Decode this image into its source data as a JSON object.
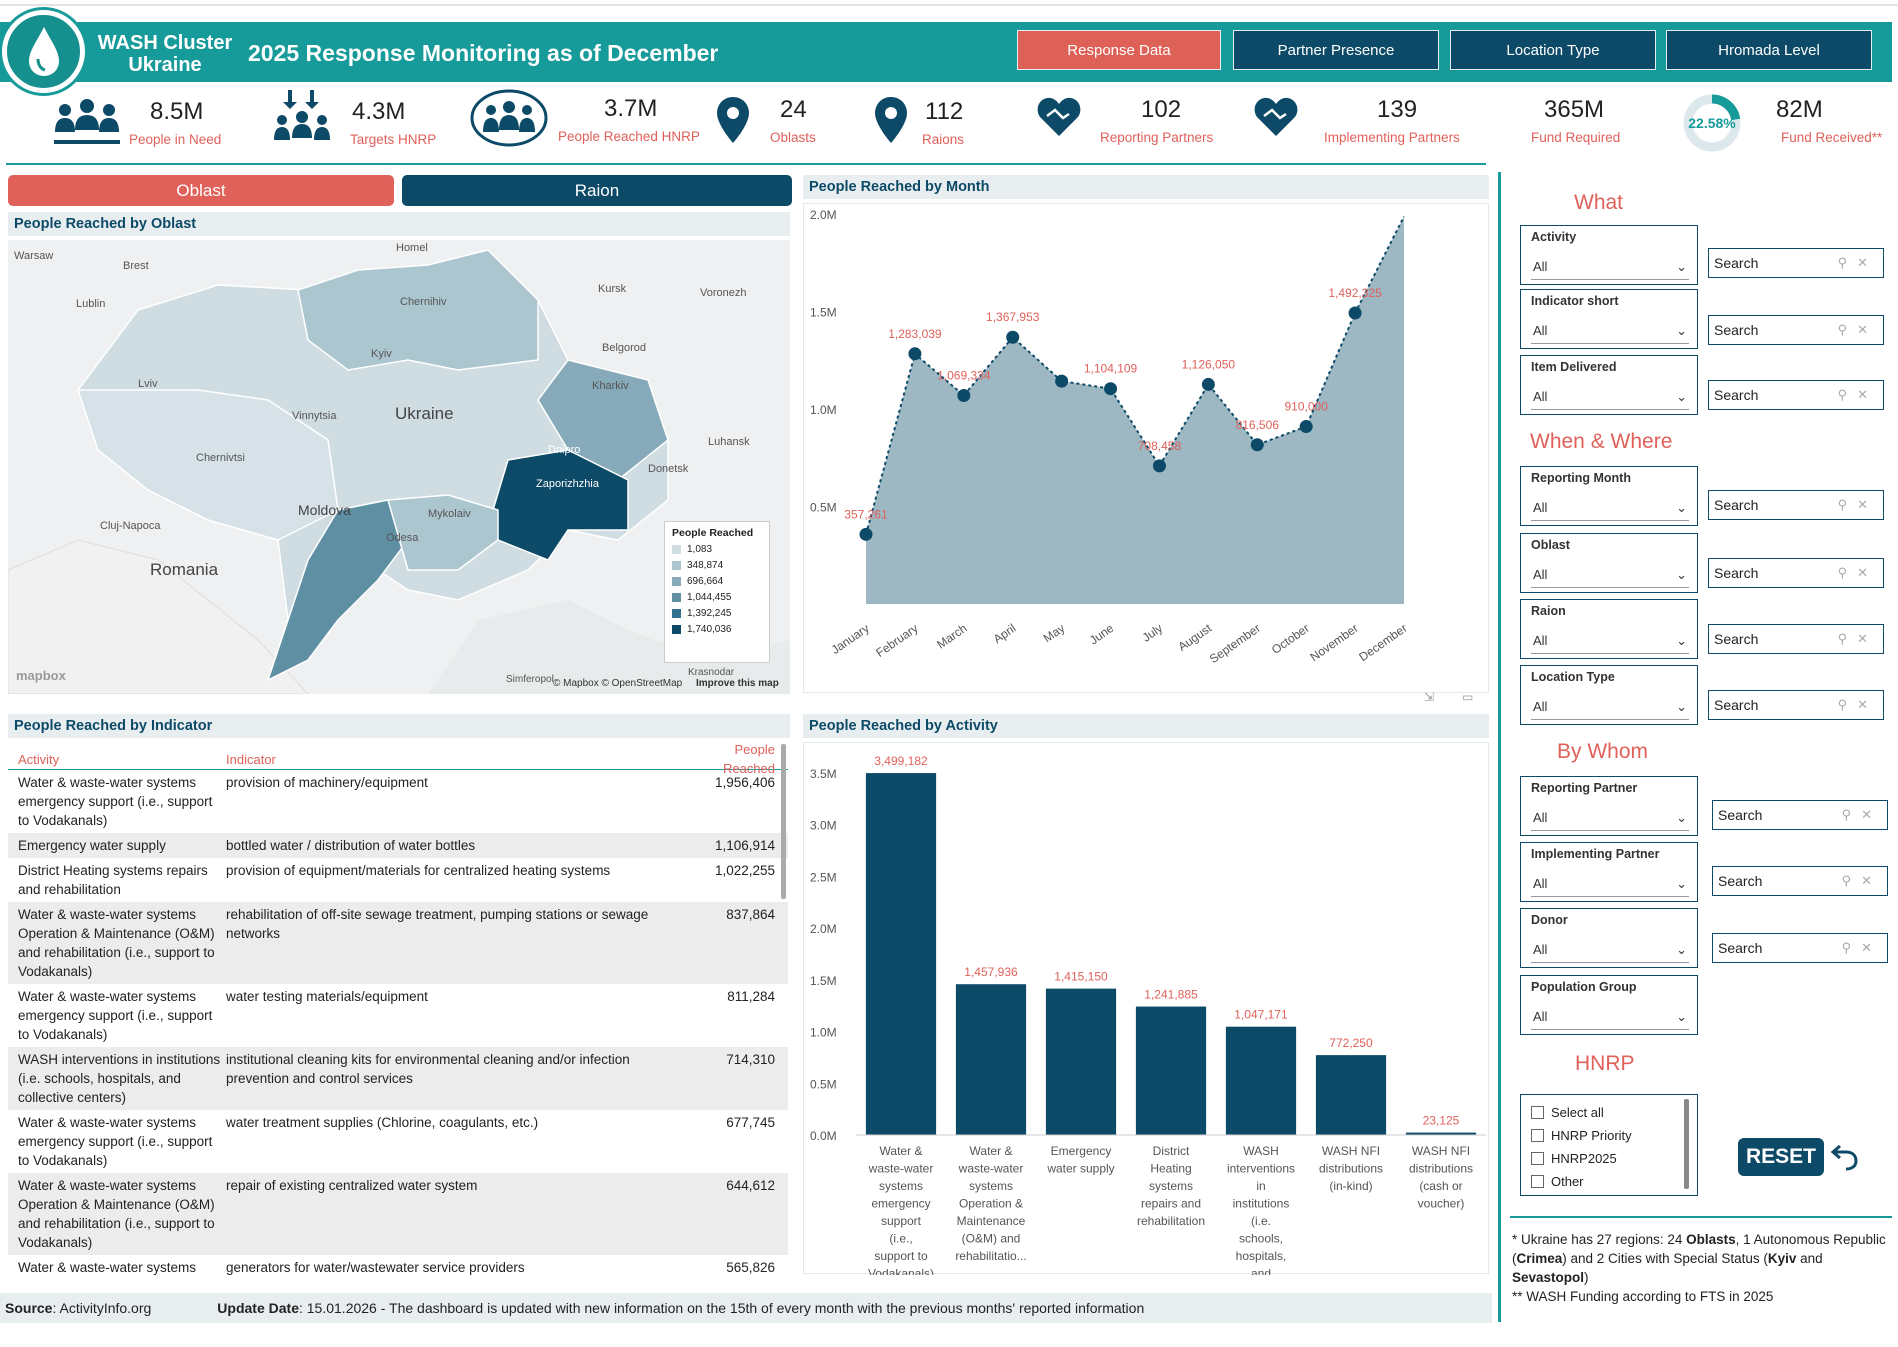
{
  "header": {
    "org": "WASH Cluster Ukraine",
    "title": "2025 Response Monitoring as of December",
    "nav": [
      "Response Data",
      "Partner Presence",
      "Location Type",
      "Hromada Level"
    ]
  },
  "kpis": {
    "need_val": "8.5M",
    "need_lbl": "People in Need",
    "target_val": "4.3M",
    "target_lbl": "Targets HNRP",
    "reached_val": "3.7M",
    "reached_lbl": "People Reached HNRP",
    "oblast_val": "24",
    "oblast_lbl": "Oblasts",
    "raion_val": "112",
    "raion_lbl": "Raions",
    "rep_val": "102",
    "rep_lbl": "Reporting Partners",
    "impl_val": "139",
    "impl_lbl": "Implementing Partners",
    "req_val": "365M",
    "req_lbl": "Fund Required",
    "donut_pct": "22.58%",
    "donut_frac": 0.2258,
    "recv_val": "82M",
    "recv_lbl": "Fund Received**"
  },
  "toggles": {
    "oblast": "Oblast",
    "raion": "Raion"
  },
  "map": {
    "title": "People Reached by Oblast",
    "labels": {
      "warsaw": "Warsaw",
      "brest": "Brest",
      "homel": "Homel",
      "lublin": "Lublin",
      "kursk": "Kursk",
      "voronezh": "Voronezh",
      "chernihiv": "Chernihiv",
      "kyiv": "Kyiv",
      "belgorod": "Belgorod",
      "kharkiv": "Kharkiv",
      "lviv": "Lviv",
      "vinnytsia": "Vinnytsia",
      "ukraine": "Ukraine",
      "luhansk": "Luhansk",
      "chernivtsi": "Chernivtsi",
      "dnipro": "Dnipro",
      "zaporizhzhia": "Zaporizhzhia",
      "donetsk": "Donetsk",
      "moldova": "Moldova",
      "cluj": "Cluj-Napoca",
      "mykolaiv": "Mykolaiv",
      "odesa": "Odesa",
      "romania": "Romania",
      "simferopol": "Simferopol",
      "krasnodar": "Krasnodar",
      "mapbox": "mapbox",
      "attrib": "© Mapbox © OpenStreetMap",
      "improve": "Improve this map"
    },
    "legend_title": "People Reached",
    "legend": [
      {
        "label": "1,083",
        "color": "#cfdde3"
      },
      {
        "label": "348,874",
        "color": "#acc6d0"
      },
      {
        "label": "696,664",
        "color": "#86aab9"
      },
      {
        "label": "1,044,455",
        "color": "#5e8fa3"
      },
      {
        "label": "1,392,245",
        "color": "#30728d"
      },
      {
        "label": "1,740,036",
        "color": "#0c4a67"
      }
    ]
  },
  "month_chart": {
    "title": "People Reached by Month",
    "yticks": [
      "2.0M",
      "1.5M",
      "1.0M",
      "0.5M"
    ],
    "ytick_values": [
      2000000,
      1500000,
      1000000,
      500000
    ]
  },
  "chart_data": [
    {
      "type": "area",
      "title": "People Reached by Month",
      "categories": [
        "January",
        "February",
        "March",
        "April",
        "May",
        "June",
        "July",
        "August",
        "September",
        "October",
        "November",
        "December"
      ],
      "values": [
        357261,
        1283039,
        1069334,
        1367953,
        1143000,
        1104109,
        708458,
        1126050,
        816506,
        910000,
        1492325,
        1987000
      ],
      "labels": [
        "357,261",
        "1,283,039",
        "1,069,334",
        "1,367,953",
        "",
        "1,104,109",
        "708,458",
        "1,126,050",
        "816,506",
        "910,000",
        "1,492,325",
        ""
      ],
      "ylim": [
        0,
        2000000
      ]
    },
    {
      "type": "bar",
      "title": "People Reached by Activity",
      "categories": [
        "Water & waste-water systems emergency support (i.e., support to Vodakanals)",
        "Water & waste-water systems Operation & Maintenance (O&M) and rehabilitatio...",
        "Emergency water supply",
        "District Heating systems repairs and rehabilitation",
        "WASH interventions in institutions (i.e. schools, hospitals, and collective centers)",
        "WASH NFI distributions (in-kind)",
        "WASH NFI distributions (cash or voucher)"
      ],
      "values": [
        3499182,
        1457936,
        1415150,
        1241885,
        1047171,
        772250,
        23125
      ],
      "labels": [
        "3,499,182",
        "1,457,936",
        "1,415,150",
        "1,241,885",
        "1,047,171",
        "772,250",
        "23,125"
      ],
      "yticks": [
        "3.5M",
        "3.0M",
        "2.5M",
        "2.0M",
        "1.5M",
        "1.0M",
        "0.5M",
        "0.0M"
      ],
      "ytick_values": [
        3500000,
        3000000,
        2500000,
        2000000,
        1500000,
        1000000,
        500000,
        0
      ],
      "ylim": [
        0,
        3500000
      ]
    }
  ],
  "activity_chart": {
    "title": "People Reached by Activity"
  },
  "indicator_table": {
    "title": "People Reached by Indicator",
    "headers": [
      "Activity",
      "Indicator",
      "People Reached"
    ],
    "rows": [
      [
        "Water & waste-water systems emergency support (i.e., support to Vodakanals)",
        "provision of machinery/equipment",
        "1,956,406"
      ],
      [
        "Emergency water supply",
        "bottled water / distribution of water bottles",
        "1,106,914"
      ],
      [
        "District Heating systems repairs and rehabilitation",
        "provision of equipment/materials for centralized heating systems",
        "1,022,255"
      ],
      [
        "Water & waste-water systems Operation & Maintenance (O&M) and rehabilitation (i.e., support to Vodakanals)",
        "rehabilitation of off-site sewage treatment, pumping stations or sewage networks",
        "837,864"
      ],
      [
        "Water & waste-water systems emergency support (i.e., support to Vodakanals)",
        "water testing materials/equipment",
        "811,284"
      ],
      [
        "WASH interventions in institutions (i.e. schools, hospitals, and collective centers)",
        "institutional cleaning kits for environmental cleaning and/or infection prevention and control services",
        "714,310"
      ],
      [
        "Water & waste-water systems emergency support (i.e., support to Vodakanals)",
        "water treatment supplies (Chlorine, coagulants, etc.)",
        "677,745"
      ],
      [
        "Water & waste-water systems Operation & Maintenance (O&M) and rehabilitation (i.e., support to Vodakanals)",
        "repair of existing centralized water system",
        "644,612"
      ],
      [
        "Water & waste-water systems",
        "generators for water/wastewater service providers",
        "565,826"
      ]
    ]
  },
  "filters": {
    "what": "What",
    "when_where": "When & Where",
    "by_whom": "By Whom",
    "hnrp": "HNRP",
    "all": "All",
    "search": "Search",
    "activity": "Activity",
    "indicator_short": "Indicator short",
    "item_delivered": "Item Delivered",
    "reporting_month": "Reporting Month",
    "oblast": "Oblast",
    "raion": "Raion",
    "location_type": "Location Type",
    "reporting_partner": "Reporting Partner",
    "implementing_partner": "Implementing Partner",
    "donor": "Donor",
    "population_group": "Population Group",
    "hnrp_options": [
      "Select all",
      "HNRP Priority",
      "HNRP2025",
      "Other"
    ],
    "reset": "RESET"
  },
  "notes": {
    "n1a": "* Ukraine has 27 regions: 24 ",
    "n1b": "Oblasts",
    "n1c": ", 1 Autonomous Republic (",
    "n1d": "Crimea",
    "n1e": ") and 2 Cities with Special Status (",
    "n1f": "Kyiv",
    "n1g": " and ",
    "n1h": "Sevastopol",
    "n1i": ")",
    "n2": "** WASH Funding according to FTS in 2025"
  },
  "footer": {
    "source_lbl": "Source",
    "source_val": ": ActivityInfo.org",
    "update_lbl": "Update Date",
    "update_val": ": 15.01.2026 - The dashboard is updated with new information on the 15th of every month with the previous months' reported information"
  },
  "colors": {
    "teal": "#179a9a",
    "navy": "#0c4a67",
    "coral": "#e0605a",
    "area": "#9db7c3"
  }
}
